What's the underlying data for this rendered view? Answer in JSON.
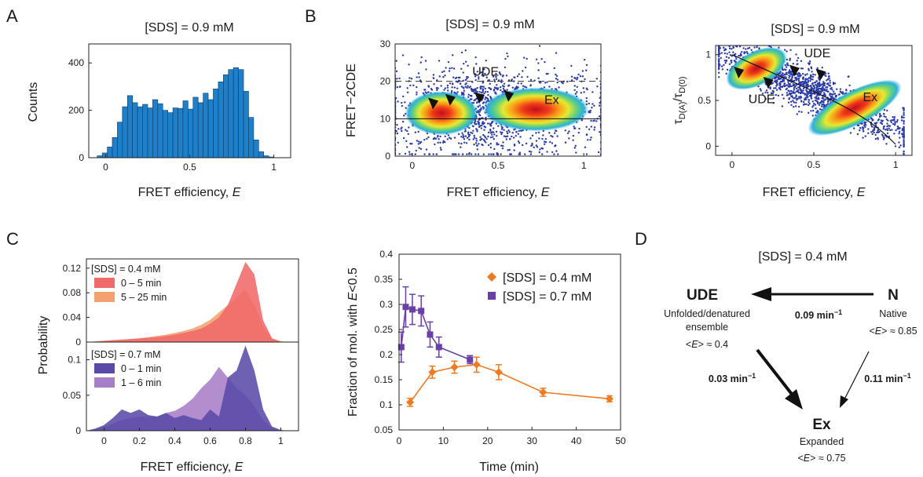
{
  "panel_labels": {
    "A": "A",
    "B": "B",
    "C": "C",
    "D": "D"
  },
  "colors": {
    "hist": "#1f7fc8",
    "red_area": "#f06a6a",
    "orange_area": "#f5a070",
    "dark_purple": "#5a4aa8",
    "light_purple": "#a77ec8",
    "orange_series": "#f07a22",
    "purple_series": "#6a3fa8",
    "scatter_dots": "#2a3aa8"
  },
  "chart_data": [
    {
      "id": "A",
      "type": "bar",
      "title": "[SDS] = 0.9 mM",
      "xlabel": "FRET efficiency, ",
      "xlabel_italic": "E",
      "ylabel": "Counts",
      "xlim": [
        -0.1,
        1.1
      ],
      "ylim": [
        0,
        480
      ],
      "xticks": [
        "0",
        "0.5",
        "1"
      ],
      "yticks": [
        "0",
        "200",
        "400"
      ],
      "bin_width": 0.03,
      "bin_starts": [
        -0.05,
        -0.02,
        0.01,
        0.04,
        0.07,
        0.1,
        0.13,
        0.16,
        0.19,
        0.22,
        0.25,
        0.28,
        0.31,
        0.34,
        0.37,
        0.4,
        0.43,
        0.46,
        0.49,
        0.52,
        0.55,
        0.58,
        0.61,
        0.64,
        0.67,
        0.7,
        0.73,
        0.76,
        0.79,
        0.82,
        0.85,
        0.88,
        0.91,
        0.94,
        0.97
      ],
      "values": [
        8,
        20,
        45,
        85,
        150,
        215,
        262,
        232,
        215,
        225,
        210,
        245,
        228,
        200,
        190,
        210,
        208,
        240,
        205,
        255,
        232,
        272,
        245,
        290,
        320,
        350,
        372,
        380,
        372,
        280,
        170,
        75,
        25,
        8,
        3
      ]
    },
    {
      "id": "B1",
      "type": "scatter",
      "title": "[SDS] = 0.9 mM",
      "xlabel": "FRET efficiency, ",
      "xlabel_italic": "E",
      "ylabel": "FRET−2CDE",
      "xlim": [
        -0.1,
        1.1
      ],
      "ylim": [
        0,
        30
      ],
      "xticks": [
        "0",
        "0.5",
        "1"
      ],
      "yticks": [
        "0",
        "10",
        "20",
        "30"
      ],
      "solid_line_y": 10,
      "dashed_line_y": 20,
      "clusters": [
        {
          "x": 0.17,
          "y": 11.5,
          "weight": 0.35
        },
        {
          "x": 0.72,
          "y": 12.5,
          "weight": 0.65
        }
      ],
      "annotations": [
        {
          "text": "UDE",
          "x": 0.35,
          "y": 21.5
        },
        {
          "text": "Ex",
          "x": 0.77,
          "y": 14
        }
      ],
      "arrows": [
        {
          "tip_x": 0.12,
          "tip_y": 12.5
        },
        {
          "tip_x": 0.22,
          "tip_y": 13.5
        },
        {
          "tip_x": 0.39,
          "tip_y": 14
        },
        {
          "tip_x": 0.56,
          "tip_y": 14.5
        }
      ]
    },
    {
      "id": "B2",
      "type": "scatter",
      "title": "[SDS] = 0.9 mM",
      "xlabel": "FRET efficiency, ",
      "xlabel_italic": "E",
      "ylabel_main": "τ",
      "ylabel_sub1": "D(A)",
      "ylabel_sep": "/τ",
      "ylabel_sub2": "D(0)",
      "xlim": [
        -0.1,
        1.1
      ],
      "ylim": [
        -0.1,
        1.1
      ],
      "xticks": [
        "0",
        "0.5",
        "1"
      ],
      "yticks": [
        "0",
        "0.5",
        "1"
      ],
      "clusters": [
        {
          "x": 0.15,
          "y": 0.85,
          "weight": 0.3
        },
        {
          "x": 0.75,
          "y": 0.42,
          "weight": 0.7
        }
      ],
      "annotations": [
        {
          "text": "UDE",
          "x": 0.44,
          "y": 0.97
        },
        {
          "text": "UDE",
          "x": 0.1,
          "y": 0.47
        },
        {
          "text": "Ex",
          "x": 0.8,
          "y": 0.49
        }
      ],
      "arrows": [
        {
          "tip_x": 0.04,
          "tip_y": 0.74
        },
        {
          "tip_x": 0.22,
          "tip_y": 0.63
        },
        {
          "tip_x": 0.38,
          "tip_y": 0.76
        },
        {
          "tip_x": 0.54,
          "tip_y": 0.72
        }
      ]
    },
    {
      "id": "C1",
      "type": "area",
      "ylabel": "Probability",
      "xlabel": "FRET efficiency, ",
      "xlabel_italic": "E",
      "xlim": [
        -0.1,
        1.1
      ],
      "xticks": [
        "0",
        "0.2",
        "0.4",
        "0.6",
        "0.8",
        "1"
      ],
      "x": [
        -0.1,
        -0.05,
        0,
        0.05,
        0.1,
        0.15,
        0.2,
        0.25,
        0.3,
        0.35,
        0.4,
        0.45,
        0.5,
        0.55,
        0.6,
        0.65,
        0.7,
        0.75,
        0.8,
        0.85,
        0.9,
        0.95,
        1.0,
        1.05,
        1.1
      ],
      "top": {
        "legend_title": "[SDS] = 0.4 mM",
        "ylim": [
          0,
          0.135
        ],
        "yticks": [
          "0",
          "0.04",
          "0.08",
          "0.12"
        ],
        "series": [
          {
            "name": "0 – 5 min",
            "values": [
              0,
              0.001,
              0.002,
              0.003,
              0.004,
              0.005,
              0.006,
              0.007,
              0.008,
              0.01,
              0.012,
              0.015,
              0.018,
              0.022,
              0.03,
              0.04,
              0.06,
              0.095,
              0.13,
              0.11,
              0.035,
              0.006,
              0.001,
              0,
              0
            ]
          },
          {
            "name": "5 – 25 min",
            "values": [
              0,
              0.001,
              0.002,
              0.003,
              0.004,
              0.005,
              0.006,
              0.008,
              0.01,
              0.012,
              0.015,
              0.018,
              0.022,
              0.028,
              0.036,
              0.048,
              0.06,
              0.072,
              0.085,
              0.06,
              0.025,
              0.006,
              0.001,
              0,
              0
            ]
          }
        ]
      },
      "bottom": {
        "legend_title": "[SDS] = 0.7 mM",
        "ylim": [
          0,
          0.125
        ],
        "yticks": [
          "0",
          "0.05",
          "0.1"
        ],
        "series": [
          {
            "name": "0 – 1 min",
            "values": [
              0,
              0.003,
              0.008,
              0.018,
              0.03,
              0.025,
              0.03,
              0.022,
              0.02,
              0.025,
              0.018,
              0.022,
              0.018,
              0.015,
              0.03,
              0.02,
              0.075,
              0.085,
              0.12,
              0.085,
              0.03,
              0.006,
              0.001,
              0,
              0
            ]
          },
          {
            "name": "1 – 6 min",
            "values": [
              0,
              0.002,
              0.005,
              0.01,
              0.015,
              0.018,
              0.02,
              0.02,
              0.02,
              0.025,
              0.028,
              0.035,
              0.045,
              0.06,
              0.072,
              0.09,
              0.075,
              0.06,
              0.05,
              0.035,
              0.015,
              0.004,
              0.001,
              0,
              0
            ]
          }
        ]
      }
    },
    {
      "id": "C2",
      "type": "line",
      "ylabel": "Fraction of mol. with ",
      "ylabel_italic": "E",
      "ylabel_tail": "<0.5",
      "xlabel": "Time (min)",
      "xlim": [
        0,
        50
      ],
      "ylim": [
        0.05,
        0.4
      ],
      "xticks": [
        "0",
        "10",
        "20",
        "30",
        "40",
        "50"
      ],
      "yticks": [
        "0.05",
        "0.1",
        "0.15",
        "0.2",
        "0.25",
        "0.3",
        "0.35",
        "0.4"
      ],
      "series": [
        {
          "name": "[SDS] = 0.4 mM",
          "marker": "diamond",
          "x": [
            2.5,
            7.5,
            12.5,
            17.5,
            22.5,
            32.5,
            47.5
          ],
          "y": [
            0.105,
            0.165,
            0.175,
            0.18,
            0.165,
            0.125,
            0.112
          ],
          "err": [
            0.008,
            0.012,
            0.012,
            0.015,
            0.015,
            0.008,
            0.006
          ]
        },
        {
          "name": "[SDS] = 0.7 mM",
          "marker": "square",
          "x": [
            0.5,
            1.5,
            3,
            5,
            7,
            9,
            16
          ],
          "y": [
            0.215,
            0.295,
            0.29,
            0.287,
            0.24,
            0.215,
            0.19
          ],
          "err": [
            0.03,
            0.04,
            0.03,
            0.03,
            0.025,
            0.02,
            0.008
          ]
        }
      ]
    }
  ],
  "scheme": {
    "title": "[SDS] = 0.4 mM",
    "ude": {
      "label": "UDE",
      "desc1": "Unfolded/denatured",
      "desc2": "ensemble",
      "e_value": "≈ 0.4"
    },
    "native": {
      "label": "N",
      "desc": "Native",
      "e_value": "≈ 0.85"
    },
    "expanded": {
      "label": "Ex",
      "desc": "Expanded",
      "e_value": "≈ 0.75"
    },
    "rates": {
      "n_to_ude": "0.09 min",
      "ude_to_ex": "0.03 min",
      "n_to_ex": "0.11 min"
    },
    "rate_exp": "−1",
    "e_symbol": "E"
  }
}
